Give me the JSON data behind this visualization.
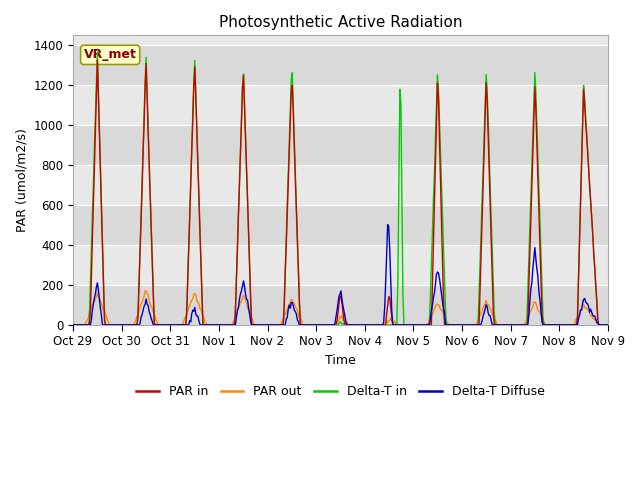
{
  "title": "Photosynthetic Active Radiation",
  "ylabel": "PAR (umol/m2/s)",
  "xlabel": "Time",
  "annotation": "VR_met",
  "ylim": [
    0,
    1450
  ],
  "yticks": [
    0,
    200,
    400,
    600,
    800,
    1000,
    1200,
    1400
  ],
  "xtick_labels": [
    "Oct 29",
    "Oct 30",
    "Oct 31",
    "Nov 1",
    "Nov 2",
    "Nov 3",
    "Nov 4",
    "Nov 5",
    "Nov 6",
    "Nov 7",
    "Nov 8",
    "Nov 9"
  ],
  "colors": {
    "PAR_in": "#cc0000",
    "PAR_out": "#ff8800",
    "Delta_T_in": "#00cc00",
    "Delta_T_Diffuse": "#0000cc"
  },
  "legend": [
    "PAR in",
    "PAR out",
    "Delta-T in",
    "Delta-T Diffuse"
  ],
  "fig_bg": "#ffffff",
  "plot_bg": "#e8e8e8",
  "grid_color": "#ffffff",
  "band_color": "#d8d8d8"
}
